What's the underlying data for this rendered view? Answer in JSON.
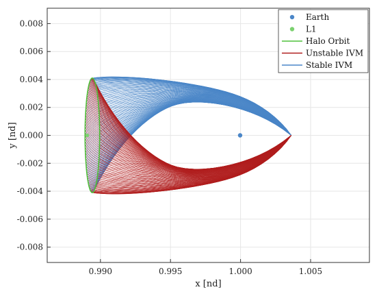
{
  "chart_data": {
    "type": "line",
    "title": "",
    "xlabel": "x [nd]",
    "ylabel": "y [nd]",
    "xlim": [
      0.9862,
      1.0092
    ],
    "ylim": [
      -0.0091,
      0.0091
    ],
    "x_ticks": [
      0.99,
      0.995,
      1.0,
      1.005
    ],
    "x_tick_labels": [
      "0.990",
      "0.995",
      "1.000",
      "1.005"
    ],
    "y_ticks": [
      0.008,
      0.006,
      0.004,
      0.002,
      0.0,
      -0.002,
      -0.004,
      -0.006,
      -0.008
    ],
    "y_tick_labels": [
      "0.008",
      "0.006",
      "0.004",
      "0.002",
      "0.000",
      "-0.002",
      "-0.004",
      "-0.006",
      "-0.008"
    ],
    "grid": true,
    "legend_position": "top-right",
    "series": [
      {
        "name": "Earth",
        "kind": "marker",
        "color": "#4a86c8",
        "points": [
          [
            0.99997,
            0.0
          ]
        ]
      },
      {
        "name": "L1",
        "kind": "marker",
        "color": "#7bd16f",
        "points": [
          [
            0.98906,
            0.0
          ]
        ]
      },
      {
        "name": "Halo Orbit",
        "kind": "line",
        "color": "#4fc03a",
        "shape": {
          "x_center": 0.98942,
          "y_center": 0.0,
          "x_semi": 0.00052,
          "y_semi": 0.0041
        }
      },
      {
        "name": "Unstable IVM",
        "kind": "line",
        "color": "#b01e1e",
        "envelope": {
          "x_min": 0.9889,
          "x_max": 1.00362,
          "y_min": -0.00515,
          "y_max": 0.0,
          "tip_x": 1.00362,
          "tip_y": 0.0
        }
      },
      {
        "name": "Stable IVM",
        "kind": "line",
        "color": "#4a86c8",
        "envelope": {
          "x_min": 0.9889,
          "x_max": 1.00362,
          "y_min": 0.0,
          "y_max": 0.00502,
          "tip_x": 1.00362,
          "tip_y": 0.0
        }
      }
    ]
  }
}
